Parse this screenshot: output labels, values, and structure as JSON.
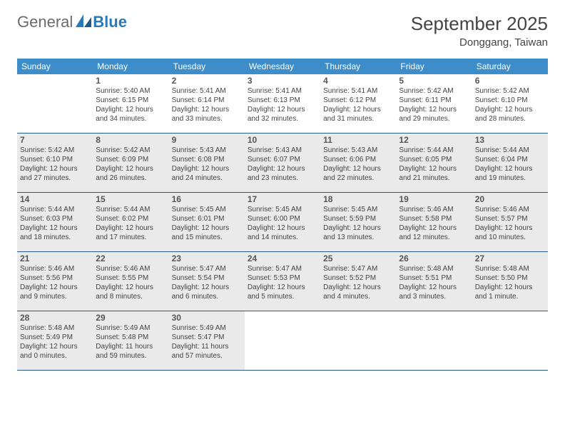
{
  "logo": {
    "text1": "General",
    "text2": "Blue"
  },
  "title": "September 2025",
  "location": "Donggang, Taiwan",
  "colors": {
    "header_bg": "#3c8dca",
    "header_text": "#ffffff",
    "border": "#2a5a8a",
    "shaded_bg": "#eaeaea",
    "cell_bg": "#ffffff",
    "text": "#444444",
    "logo_gray": "#6b6b6b",
    "logo_blue": "#2a7ab9"
  },
  "dayNames": [
    "Sunday",
    "Monday",
    "Tuesday",
    "Wednesday",
    "Thursday",
    "Friday",
    "Saturday"
  ],
  "weeks": [
    {
      "shaded": false,
      "days": [
        {
          "num": "",
          "sunrise": "",
          "sunset": "",
          "daylight": ""
        },
        {
          "num": "1",
          "sunrise": "Sunrise: 5:40 AM",
          "sunset": "Sunset: 6:15 PM",
          "daylight": "Daylight: 12 hours and 34 minutes."
        },
        {
          "num": "2",
          "sunrise": "Sunrise: 5:41 AM",
          "sunset": "Sunset: 6:14 PM",
          "daylight": "Daylight: 12 hours and 33 minutes."
        },
        {
          "num": "3",
          "sunrise": "Sunrise: 5:41 AM",
          "sunset": "Sunset: 6:13 PM",
          "daylight": "Daylight: 12 hours and 32 minutes."
        },
        {
          "num": "4",
          "sunrise": "Sunrise: 5:41 AM",
          "sunset": "Sunset: 6:12 PM",
          "daylight": "Daylight: 12 hours and 31 minutes."
        },
        {
          "num": "5",
          "sunrise": "Sunrise: 5:42 AM",
          "sunset": "Sunset: 6:11 PM",
          "daylight": "Daylight: 12 hours and 29 minutes."
        },
        {
          "num": "6",
          "sunrise": "Sunrise: 5:42 AM",
          "sunset": "Sunset: 6:10 PM",
          "daylight": "Daylight: 12 hours and 28 minutes."
        }
      ]
    },
    {
      "shaded": true,
      "days": [
        {
          "num": "7",
          "sunrise": "Sunrise: 5:42 AM",
          "sunset": "Sunset: 6:10 PM",
          "daylight": "Daylight: 12 hours and 27 minutes."
        },
        {
          "num": "8",
          "sunrise": "Sunrise: 5:42 AM",
          "sunset": "Sunset: 6:09 PM",
          "daylight": "Daylight: 12 hours and 26 minutes."
        },
        {
          "num": "9",
          "sunrise": "Sunrise: 5:43 AM",
          "sunset": "Sunset: 6:08 PM",
          "daylight": "Daylight: 12 hours and 24 minutes."
        },
        {
          "num": "10",
          "sunrise": "Sunrise: 5:43 AM",
          "sunset": "Sunset: 6:07 PM",
          "daylight": "Daylight: 12 hours and 23 minutes."
        },
        {
          "num": "11",
          "sunrise": "Sunrise: 5:43 AM",
          "sunset": "Sunset: 6:06 PM",
          "daylight": "Daylight: 12 hours and 22 minutes."
        },
        {
          "num": "12",
          "sunrise": "Sunrise: 5:44 AM",
          "sunset": "Sunset: 6:05 PM",
          "daylight": "Daylight: 12 hours and 21 minutes."
        },
        {
          "num": "13",
          "sunrise": "Sunrise: 5:44 AM",
          "sunset": "Sunset: 6:04 PM",
          "daylight": "Daylight: 12 hours and 19 minutes."
        }
      ]
    },
    {
      "shaded": true,
      "days": [
        {
          "num": "14",
          "sunrise": "Sunrise: 5:44 AM",
          "sunset": "Sunset: 6:03 PM",
          "daylight": "Daylight: 12 hours and 18 minutes."
        },
        {
          "num": "15",
          "sunrise": "Sunrise: 5:44 AM",
          "sunset": "Sunset: 6:02 PM",
          "daylight": "Daylight: 12 hours and 17 minutes."
        },
        {
          "num": "16",
          "sunrise": "Sunrise: 5:45 AM",
          "sunset": "Sunset: 6:01 PM",
          "daylight": "Daylight: 12 hours and 15 minutes."
        },
        {
          "num": "17",
          "sunrise": "Sunrise: 5:45 AM",
          "sunset": "Sunset: 6:00 PM",
          "daylight": "Daylight: 12 hours and 14 minutes."
        },
        {
          "num": "18",
          "sunrise": "Sunrise: 5:45 AM",
          "sunset": "Sunset: 5:59 PM",
          "daylight": "Daylight: 12 hours and 13 minutes."
        },
        {
          "num": "19",
          "sunrise": "Sunrise: 5:46 AM",
          "sunset": "Sunset: 5:58 PM",
          "daylight": "Daylight: 12 hours and 12 minutes."
        },
        {
          "num": "20",
          "sunrise": "Sunrise: 5:46 AM",
          "sunset": "Sunset: 5:57 PM",
          "daylight": "Daylight: 12 hours and 10 minutes."
        }
      ]
    },
    {
      "shaded": true,
      "days": [
        {
          "num": "21",
          "sunrise": "Sunrise: 5:46 AM",
          "sunset": "Sunset: 5:56 PM",
          "daylight": "Daylight: 12 hours and 9 minutes."
        },
        {
          "num": "22",
          "sunrise": "Sunrise: 5:46 AM",
          "sunset": "Sunset: 5:55 PM",
          "daylight": "Daylight: 12 hours and 8 minutes."
        },
        {
          "num": "23",
          "sunrise": "Sunrise: 5:47 AM",
          "sunset": "Sunset: 5:54 PM",
          "daylight": "Daylight: 12 hours and 6 minutes."
        },
        {
          "num": "24",
          "sunrise": "Sunrise: 5:47 AM",
          "sunset": "Sunset: 5:53 PM",
          "daylight": "Daylight: 12 hours and 5 minutes."
        },
        {
          "num": "25",
          "sunrise": "Sunrise: 5:47 AM",
          "sunset": "Sunset: 5:52 PM",
          "daylight": "Daylight: 12 hours and 4 minutes."
        },
        {
          "num": "26",
          "sunrise": "Sunrise: 5:48 AM",
          "sunset": "Sunset: 5:51 PM",
          "daylight": "Daylight: 12 hours and 3 minutes."
        },
        {
          "num": "27",
          "sunrise": "Sunrise: 5:48 AM",
          "sunset": "Sunset: 5:50 PM",
          "daylight": "Daylight: 12 hours and 1 minute."
        }
      ]
    },
    {
      "shaded": true,
      "days": [
        {
          "num": "28",
          "sunrise": "Sunrise: 5:48 AM",
          "sunset": "Sunset: 5:49 PM",
          "daylight": "Daylight: 12 hours and 0 minutes."
        },
        {
          "num": "29",
          "sunrise": "Sunrise: 5:49 AM",
          "sunset": "Sunset: 5:48 PM",
          "daylight": "Daylight: 11 hours and 59 minutes."
        },
        {
          "num": "30",
          "sunrise": "Sunrise: 5:49 AM",
          "sunset": "Sunset: 5:47 PM",
          "daylight": "Daylight: 11 hours and 57 minutes."
        },
        {
          "num": "",
          "sunrise": "",
          "sunset": "",
          "daylight": ""
        },
        {
          "num": "",
          "sunrise": "",
          "sunset": "",
          "daylight": ""
        },
        {
          "num": "",
          "sunrise": "",
          "sunset": "",
          "daylight": ""
        },
        {
          "num": "",
          "sunrise": "",
          "sunset": "",
          "daylight": ""
        }
      ]
    }
  ]
}
